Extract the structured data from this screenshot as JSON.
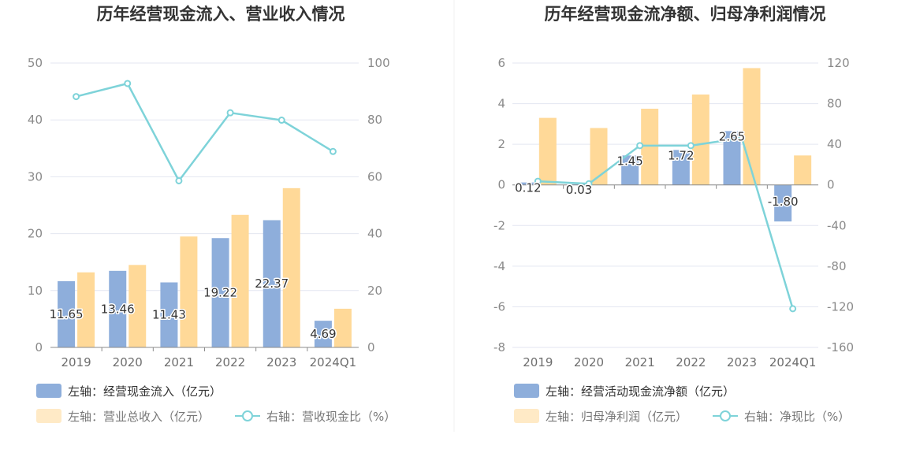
{
  "chart_data": [
    {
      "type": "bar",
      "title": "历年经营现金流入、营业收入情况",
      "categories": [
        "2019",
        "2020",
        "2021",
        "2022",
        "2023",
        "2024Q1"
      ],
      "left_axis": {
        "ylim": [
          0,
          50
        ],
        "ticks": [
          "0",
          "10",
          "20",
          "30",
          "40",
          "50"
        ]
      },
      "right_axis": {
        "ylim": [
          0,
          100
        ],
        "ticks": [
          "0",
          "20",
          "40",
          "60",
          "80",
          "100"
        ]
      },
      "grid": true,
      "legend_position": "bottom-left",
      "series": [
        {
          "name": "左轴：经营现金流入（亿元）",
          "type": "bar",
          "axis": "left",
          "color": "#8eaedb",
          "values": [
            11.65,
            13.46,
            11.43,
            19.22,
            22.37,
            4.69
          ],
          "labels": [
            "11.65",
            "13.46",
            "11.43",
            "19.22",
            "22.37",
            "4.69"
          ]
        },
        {
          "name": "左轴：营业总收入（亿元）",
          "type": "bar",
          "axis": "left",
          "color": "#ffd998",
          "values": [
            13.2,
            14.5,
            19.5,
            23.3,
            28.0,
            6.8
          ]
        },
        {
          "name": "右轴：营收现金比（%）",
          "type": "line",
          "axis": "right",
          "color": "#7ed3d9",
          "values": [
            88.2,
            92.8,
            58.6,
            82.5,
            79.9,
            68.9
          ]
        }
      ]
    },
    {
      "type": "bar",
      "title": "历年经营现金流净额、归母净利润情况",
      "categories": [
        "2019",
        "2020",
        "2021",
        "2022",
        "2023",
        "2024Q1"
      ],
      "left_axis": {
        "ylim": [
          -8,
          6
        ],
        "ticks": [
          "-8",
          "-6",
          "-4",
          "-2",
          "0",
          "2",
          "4",
          "6"
        ]
      },
      "right_axis": {
        "ylim": [
          -160,
          120
        ],
        "ticks": [
          "-160",
          "-120",
          "-80",
          "-40",
          "0",
          "40",
          "80",
          "120"
        ]
      },
      "grid": true,
      "legend_position": "bottom-left",
      "series": [
        {
          "name": "左轴：经营活动现金流净额（亿元）",
          "type": "bar",
          "axis": "left",
          "color": "#8eaedb",
          "values": [
            0.12,
            0.03,
            1.45,
            1.72,
            2.65,
            -1.8
          ],
          "labels": [
            "0.12",
            "0.03",
            "1.45",
            "1.72",
            "2.65",
            "-1.80"
          ]
        },
        {
          "name": "左轴：归母净利润（亿元）",
          "type": "bar",
          "axis": "left",
          "color": "#ffd998",
          "values": [
            3.3,
            2.8,
            3.75,
            4.45,
            5.75,
            1.45
          ]
        },
        {
          "name": "右轴：净现比（%）",
          "type": "line",
          "axis": "right",
          "color": "#7ed3d9",
          "values": [
            3.6,
            1.1,
            38.7,
            38.7,
            46.1,
            -121.9
          ]
        }
      ]
    }
  ]
}
